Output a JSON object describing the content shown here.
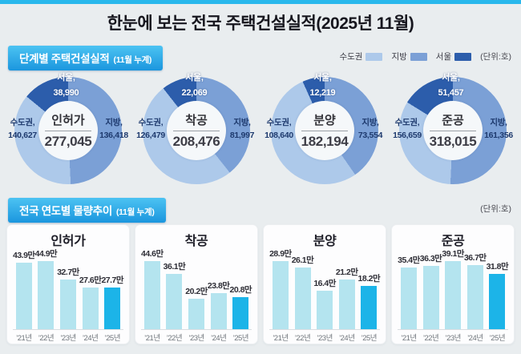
{
  "page": {
    "title": "한눈에 보는 전국 주택건설실적(2025년 11월)"
  },
  "colors": {
    "accent_strip": "#29b8ec",
    "badge_top": "#4cc3f2",
    "badge_bottom": "#1b96de",
    "sudogwon": "#adc9ea",
    "jibang": "#7ba0d6",
    "seoul": "#2c5dab",
    "bar": "#b4e4ef",
    "bar_highlight": "#1cb4e8"
  },
  "region_labels": {
    "sudogwon": "수도권",
    "jibang": "지방",
    "seoul": "서울"
  },
  "section1": {
    "title": "단계별 주택건설실적",
    "subtitle": "(11월 누계)",
    "unit_label": "(단위:호)",
    "legend": [
      {
        "label": "수도권",
        "color_key": "sudogwon"
      },
      {
        "label": "지방",
        "color_key": "jibang"
      },
      {
        "label": "서울",
        "color_key": "seoul"
      }
    ]
  },
  "section2": {
    "title": "전국 연도별 물량추이",
    "subtitle": "(11월 누계)",
    "unit_label": "(단위:호)"
  },
  "chart_data": [
    {
      "type": "donut",
      "title": "인허가",
      "total": 277045,
      "sudogwon": 140627,
      "jibang": 136418,
      "seoul": 38990,
      "seoul_included_in_sudogwon": true
    },
    {
      "type": "donut",
      "title": "착공",
      "total": 208476,
      "sudogwon": 126479,
      "jibang": 81997,
      "seoul": 22069,
      "seoul_included_in_sudogwon": true
    },
    {
      "type": "donut",
      "title": "분양",
      "total": 182194,
      "sudogwon": 108640,
      "jibang": 73554,
      "seoul": 12219,
      "seoul_included_in_sudogwon": true
    },
    {
      "type": "donut",
      "title": "준공",
      "total": 318015,
      "sudogwon": 156659,
      "jibang": 161356,
      "seoul": 51457,
      "seoul_included_in_sudogwon": true
    },
    {
      "type": "bar",
      "title": "인허가",
      "categories": [
        "’21년",
        "’22년",
        "’23년",
        "’24년",
        "’25년"
      ],
      "values": [
        43.9,
        44.9,
        32.7,
        27.6,
        27.7
      ],
      "unit_suffix": "만",
      "highlight_index": 4,
      "ylim": [
        0,
        44.9
      ]
    },
    {
      "type": "bar",
      "title": "착공",
      "categories": [
        "’21년",
        "’22년",
        "’23년",
        "’24년",
        "’25년"
      ],
      "values": [
        44.6,
        36.1,
        20.2,
        23.8,
        20.8
      ],
      "unit_suffix": "만",
      "highlight_index": 4,
      "ylim": [
        0,
        44.6
      ]
    },
    {
      "type": "bar",
      "title": "분양",
      "categories": [
        "’21년",
        "’22년",
        "’23년",
        "’24년",
        "’25년"
      ],
      "values": [
        28.9,
        26.1,
        16.4,
        21.2,
        18.2
      ],
      "unit_suffix": "만",
      "highlight_index": 4,
      "ylim": [
        0,
        28.9
      ]
    },
    {
      "type": "bar",
      "title": "준공",
      "categories": [
        "’21년",
        "’22년",
        "’23년",
        "’24년",
        "’25년"
      ],
      "values": [
        35.4,
        36.3,
        39.1,
        36.7,
        31.8
      ],
      "unit_suffix": "만",
      "highlight_index": 4,
      "ylim": [
        0,
        39.1
      ]
    }
  ]
}
